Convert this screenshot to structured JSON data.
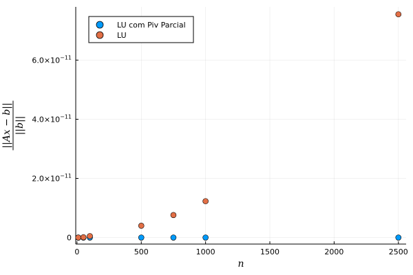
{
  "chart_data": {
    "type": "scatter",
    "xlabel": "n",
    "ylabel": "||Ax − b|| / ||b||",
    "xlim": [
      -10,
      2560
    ],
    "ylim": [
      -2.2e-12,
      7.8e-11
    ],
    "xticks": [
      0,
      500,
      1000,
      1500,
      2000,
      2500
    ],
    "xtick_labels": [
      "0",
      "500",
      "1000",
      "1500",
      "2000",
      "2500"
    ],
    "yticks": [
      0,
      2e-11,
      4e-11,
      6e-11
    ],
    "ytick_labels": [
      {
        "mantissa": "0",
        "exp": ""
      },
      {
        "mantissa": "2.0×10",
        "exp": "−11"
      },
      {
        "mantissa": "4.0×10",
        "exp": "−11"
      },
      {
        "mantissa": "6.0×10",
        "exp": "−11"
      }
    ],
    "grid": true,
    "legend_position": "top-left",
    "series": [
      {
        "name": "LU com Piv Parcial",
        "color": "#009AFA",
        "x": [
          10,
          50,
          100,
          500,
          750,
          1000,
          2500
        ],
        "y": [
          0,
          0,
          0,
          0,
          0,
          0,
          0
        ]
      },
      {
        "name": "LU",
        "color": "#E26F46",
        "x": [
          10,
          50,
          100,
          500,
          750,
          1000,
          2500
        ],
        "y": [
          0,
          1e-13,
          5e-13,
          4e-12,
          7.6e-12,
          1.23e-11,
          7.55e-11
        ]
      }
    ]
  }
}
